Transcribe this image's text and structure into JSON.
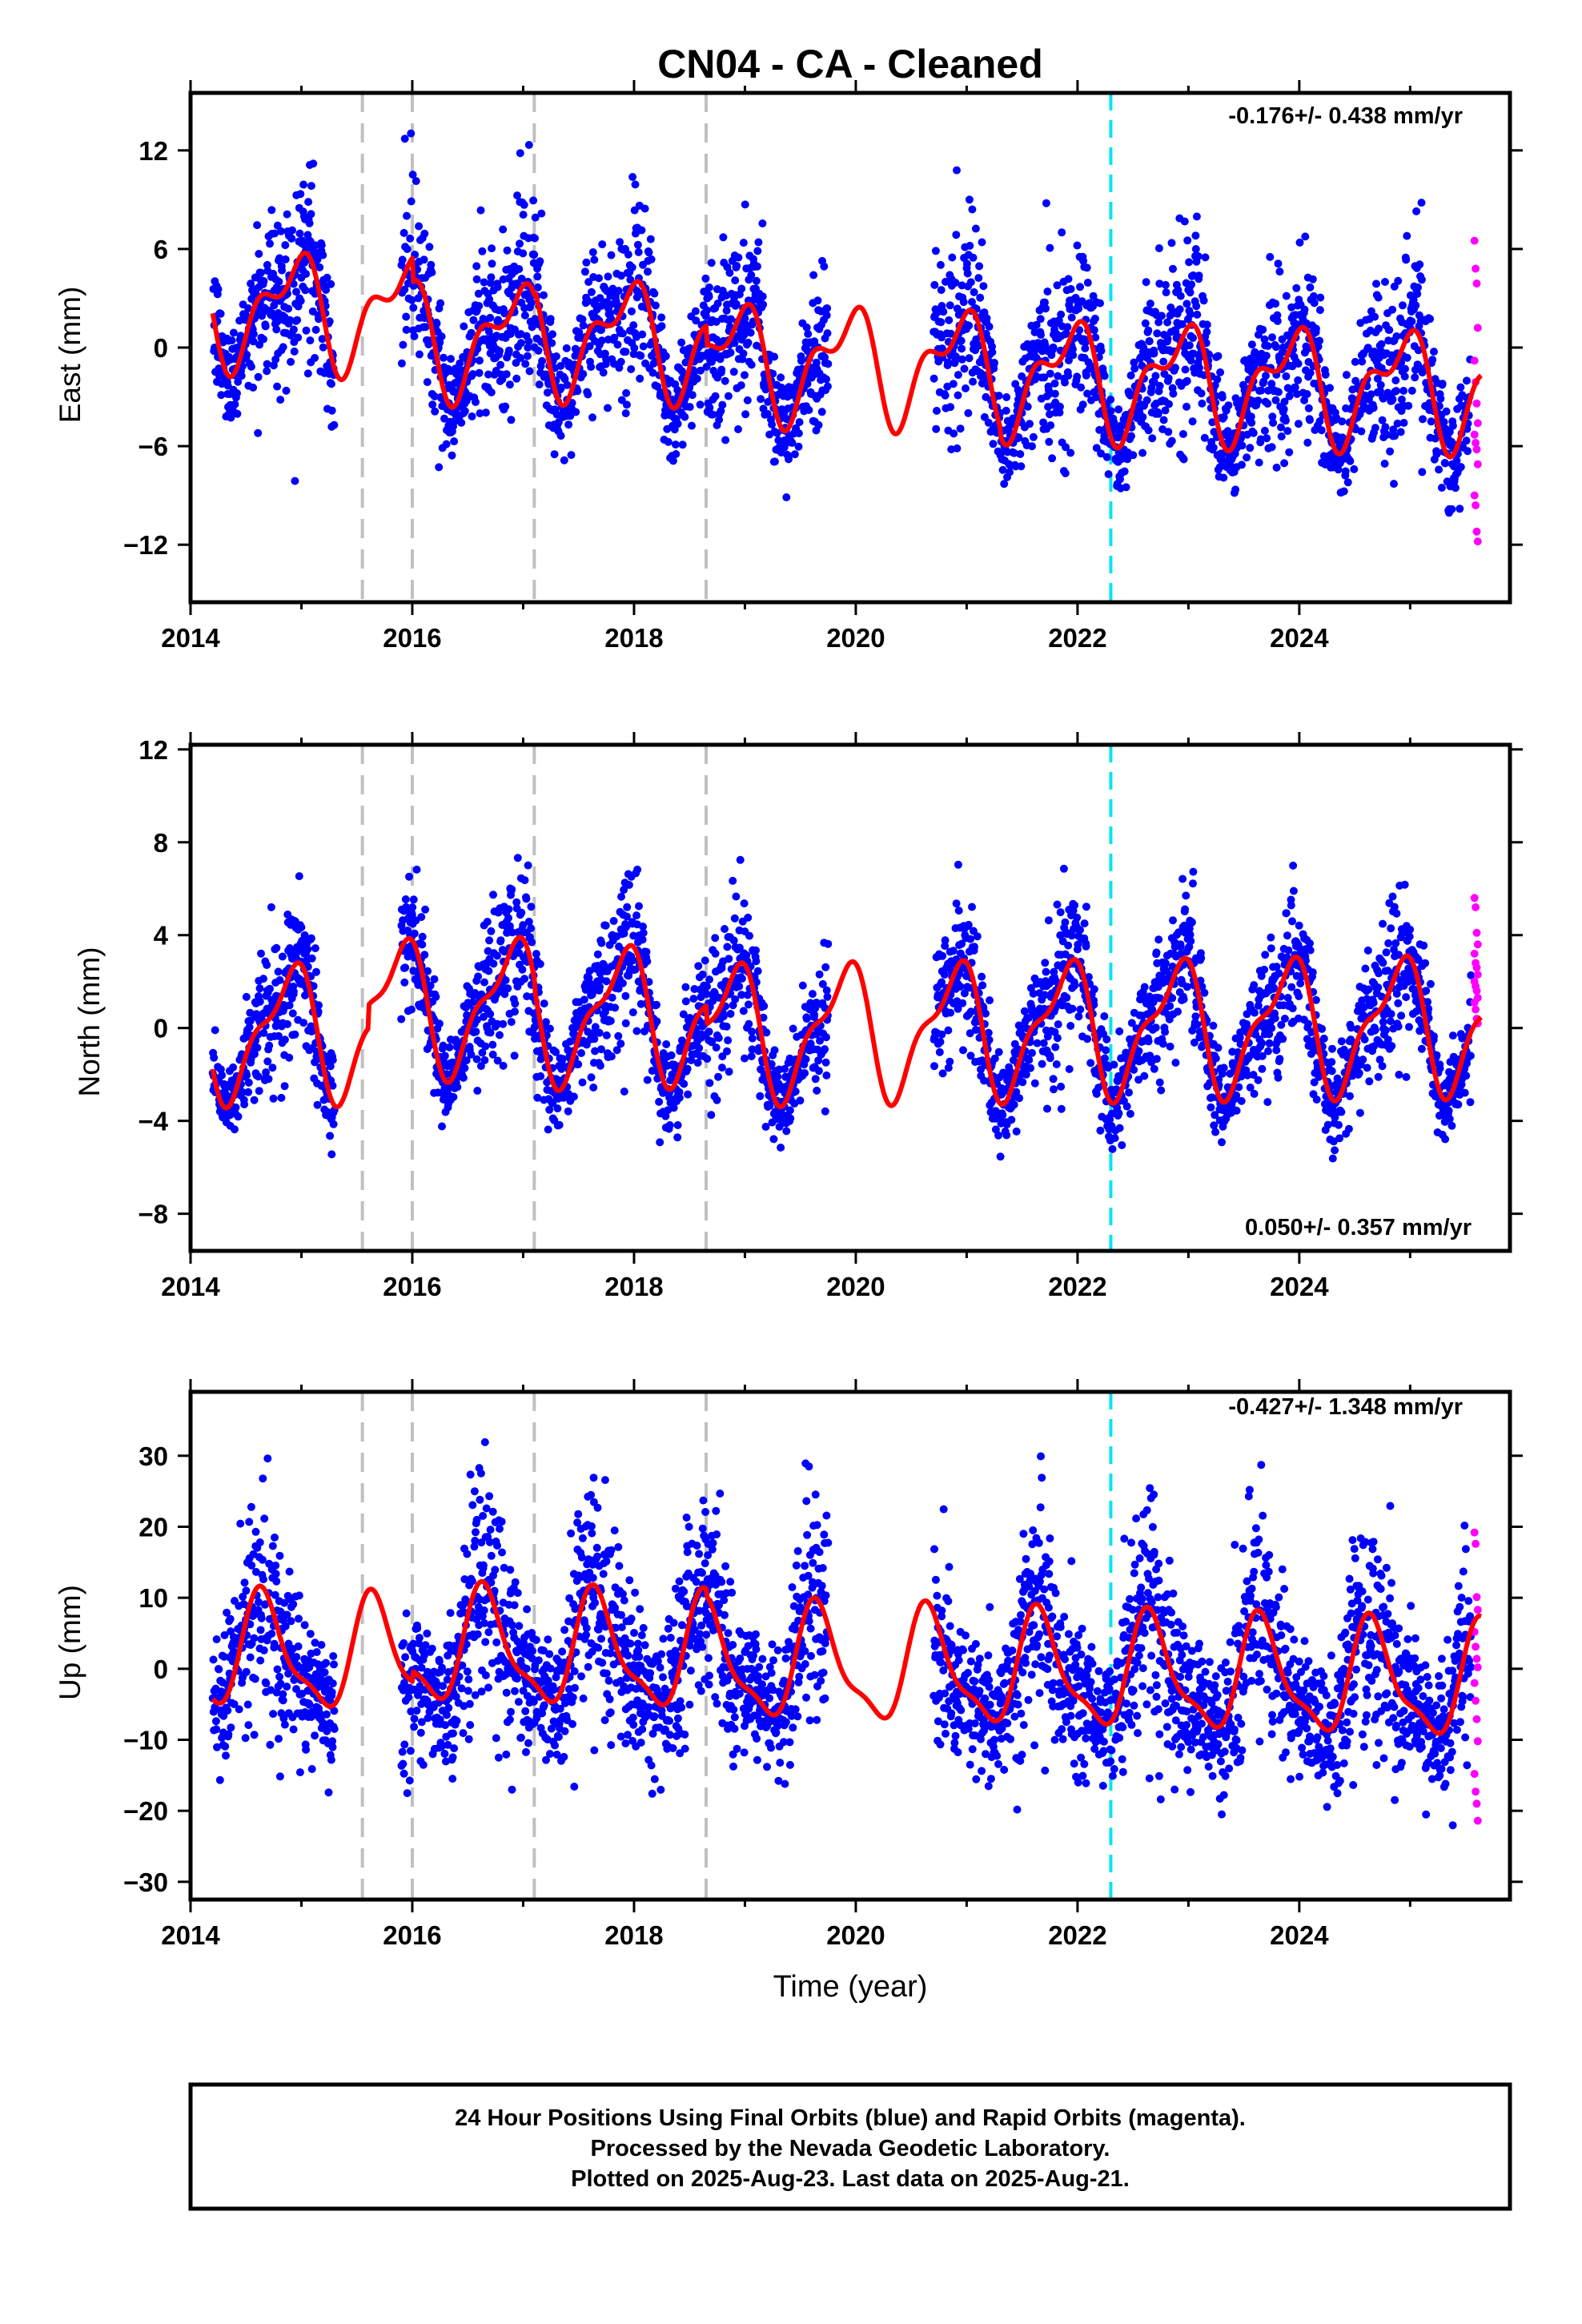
{
  "chart_data": {
    "type": "scatter",
    "title": "CN04  - CA - Cleaned",
    "xlabel": "Time (year)",
    "x_ticks": [
      2014,
      2016,
      2018,
      2020,
      2022,
      2024
    ],
    "xlim": [
      2014,
      2025.9
    ],
    "equipment_changes": [
      2015.55,
      2016.0,
      2017.1,
      2018.65
    ],
    "reference_event": 2022.3,
    "colors": {
      "final": "#0000ff",
      "rapid": "#ff00ff",
      "model": "#ff0000",
      "equipment": "#c0c0c0",
      "event": "#00e5ee"
    },
    "gaps": [
      [
        2015.3,
        2015.9
      ],
      [
        2019.75,
        2020.7
      ]
    ],
    "panels": [
      {
        "id": "east",
        "ylabel": "East (mm)",
        "ylim": [
          -15.5,
          15.5
        ],
        "y_ticks": [
          -12,
          -6,
          0,
          6,
          12
        ],
        "rate": "-0.176+/- 0.438 mm/yr",
        "rate_position": "top-right",
        "trend": -0.18,
        "ann": 2.9,
        "ann_phase": 2.1,
        "semi": 1.6,
        "semi_phase": 0.5,
        "offsets": [
          [
            2016.0,
            -1.5
          ],
          [
            2017.1,
            0.3
          ],
          [
            2018.65,
            -1.2
          ],
          [
            2021.3,
            -0.5
          ]
        ],
        "noise": 2.3,
        "rapid_values": [
          6.5,
          4.8,
          3.9,
          1.2,
          -0.8,
          -2.1,
          -3.4,
          -4.6,
          -5.3,
          -5.8,
          -6.2,
          -7.1,
          -9.0,
          -9.6,
          -11.2,
          -11.8
        ]
      },
      {
        "id": "north",
        "ylabel": "North (mm)",
        "ylim": [
          -9.6,
          12.2
        ],
        "y_ticks": [
          -8,
          -4,
          0,
          4,
          8,
          12
        ],
        "rate": "0.050+/- 0.357 mm/yr",
        "rate_position": "bottom-right",
        "trend": 0.05,
        "ann": 2.6,
        "ann_phase": 2.3,
        "semi": 1.0,
        "semi_phase": 1.2,
        "offsets": [
          [
            2015.6,
            1.0
          ],
          [
            2017.1,
            -0.4
          ],
          [
            2018.65,
            -0.8
          ]
        ],
        "noise": 1.3,
        "rapid_values": [
          5.6,
          5.2,
          4.1,
          3.6,
          3.2,
          2.8,
          2.6,
          2.3,
          2.0,
          1.8,
          1.6,
          1.3,
          1.1,
          0.8,
          0.4,
          0.2
        ]
      },
      {
        "id": "up",
        "ylabel": "Up (mm)",
        "ylim": [
          -32.5,
          39
        ],
        "y_ticks": [
          -30,
          -20,
          -10,
          0,
          10,
          20,
          30
        ],
        "rate": "-0.427+/- 1.348 mm/yr",
        "rate_position": "top-right",
        "trend": -0.43,
        "ann": 7.5,
        "ann_phase": 3.7,
        "semi": 2.4,
        "semi_phase": 0.3,
        "offsets": [
          [
            2016.0,
            1.5
          ],
          [
            2018.65,
            -1.0
          ]
        ],
        "noise": 6.2,
        "rapid_values": [
          19.2,
          17.6,
          10.1,
          8.3,
          5.2,
          3.1,
          1.4,
          0.2,
          -2.0,
          -4.5,
          -7.1,
          -10.2,
          -14.8,
          -17.3,
          -19.0,
          -21.4
        ]
      }
    ],
    "footer": [
      "24 Hour Positions Using Final Orbits (blue) and Rapid Orbits (magenta).",
      "Processed by the Nevada Geodetic Laboratory.",
      "Plotted on 2025-Aug-23. Last data on 2025-Aug-21."
    ]
  }
}
